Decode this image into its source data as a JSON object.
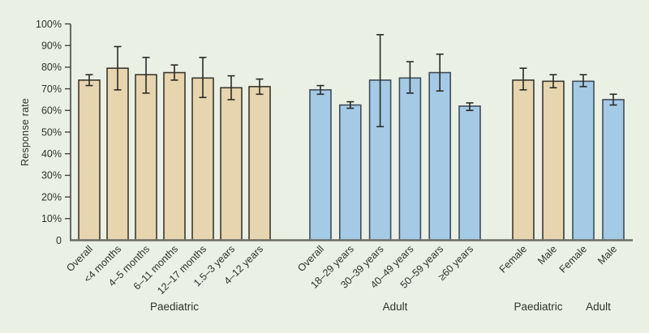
{
  "page": {
    "background": "#ebf0e5"
  },
  "chart_data": {
    "type": "bar",
    "title": "",
    "ylabel": "Response rate",
    "xlabel": "",
    "ylim": [
      0,
      100
    ],
    "ytick_step": 10,
    "ytick_labels": [
      "0",
      "10%",
      "20%",
      "30%",
      "40%",
      "50%",
      "60%",
      "70%",
      "80%",
      "90%",
      "100%"
    ],
    "grid": false,
    "legend": "none",
    "error_bars": true,
    "colors": {
      "paediatric_fill": "#e6d5ae",
      "paediatric_stroke": "#3b382e",
      "adult_fill": "#a4cae6",
      "adult_stroke": "#3f4d5a",
      "error_bar": "#2b2b26",
      "y_axis": "#45453f",
      "x_axis": "#6f6f67",
      "text": "#2f332c"
    },
    "groups": [
      {
        "label": "Paediatric",
        "series": "paediatric",
        "bars": [
          {
            "category": "Overall",
            "value": 74,
            "ci_low": 71.5,
            "ci_high": 76.5
          },
          {
            "category": "<4 months",
            "value": 79.5,
            "ci_low": 69.5,
            "ci_high": 89.5
          },
          {
            "category": "4–5 months",
            "value": 76.5,
            "ci_low": 68,
            "ci_high": 84.5
          },
          {
            "category": "6–11 months",
            "value": 77.5,
            "ci_low": 74,
            "ci_high": 81
          },
          {
            "category": "12–17 months",
            "value": 75,
            "ci_low": 66,
            "ci_high": 84.5
          },
          {
            "category": "1.5–3 years",
            "value": 70.5,
            "ci_low": 65,
            "ci_high": 76
          },
          {
            "category": "4–12 years",
            "value": 71,
            "ci_low": 67.5,
            "ci_high": 74.5
          }
        ]
      },
      {
        "label": "Adult",
        "series": "adult",
        "bars": [
          {
            "category": "Overall",
            "value": 69.5,
            "ci_low": 67.5,
            "ci_high": 71.5
          },
          {
            "category": "18–29 years",
            "value": 62.5,
            "ci_low": 61,
            "ci_high": 64
          },
          {
            "category": "30–39 years",
            "value": 74,
            "ci_low": 52.5,
            "ci_high": 95
          },
          {
            "category": "40–49 years",
            "value": 75,
            "ci_low": 68,
            "ci_high": 82.5
          },
          {
            "category": "50–59 years",
            "value": 77.5,
            "ci_low": 69,
            "ci_high": 86
          },
          {
            "category": "≥60 years",
            "value": 62,
            "ci_low": 60,
            "ci_high": 63.5
          }
        ]
      },
      {
        "label": "Paediatric",
        "series": "paediatric",
        "bars": [
          {
            "category": "Female",
            "value": 74,
            "ci_low": 69.5,
            "ci_high": 79.5
          },
          {
            "category": "Male",
            "value": 73.5,
            "ci_low": 70.5,
            "ci_high": 76.5
          }
        ]
      },
      {
        "label": "Adult",
        "series": "adult",
        "bars": [
          {
            "category": "Female",
            "value": 73.5,
            "ci_low": 71,
            "ci_high": 76.5
          },
          {
            "category": "Male",
            "value": 65,
            "ci_low": 62.5,
            "ci_high": 67.5
          }
        ]
      }
    ]
  }
}
